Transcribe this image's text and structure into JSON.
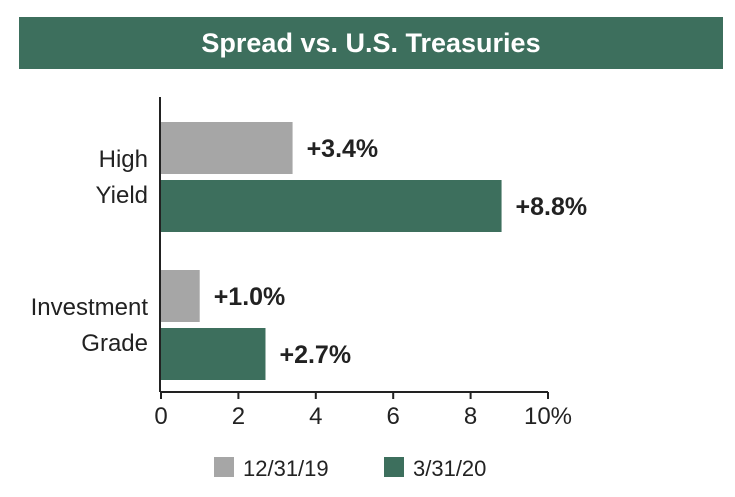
{
  "chart_data": {
    "type": "bar",
    "orientation": "horizontal",
    "title": "Spread vs. U.S. Treasuries",
    "categories": [
      "High Yield",
      "Investment Grade"
    ],
    "category_label_lines": [
      [
        "High",
        "Yield"
      ],
      [
        "Investment",
        "Grade"
      ]
    ],
    "series": [
      {
        "name": "12/31/19",
        "values": [
          3.4,
          1.0
        ],
        "labels": [
          "+3.4%",
          "+1.0%"
        ],
        "color": "#a6a6a6"
      },
      {
        "name": "3/31/20",
        "values": [
          8.8,
          2.7
        ],
        "labels": [
          "+8.8%",
          "+2.7%"
        ],
        "color": "#3d6f5d"
      }
    ],
    "xlim": [
      0,
      10
    ],
    "x_ticks": [
      "0",
      "2",
      "4",
      "6",
      "8",
      "10%"
    ],
    "x_tick_values": [
      0,
      2,
      4,
      6,
      8,
      10
    ],
    "grid": false,
    "legend_position": "bottom"
  },
  "colors": {
    "title_bar": "#3d6f5d",
    "title_text": "#ffffff",
    "axis": "#222222",
    "text": "#222222"
  }
}
